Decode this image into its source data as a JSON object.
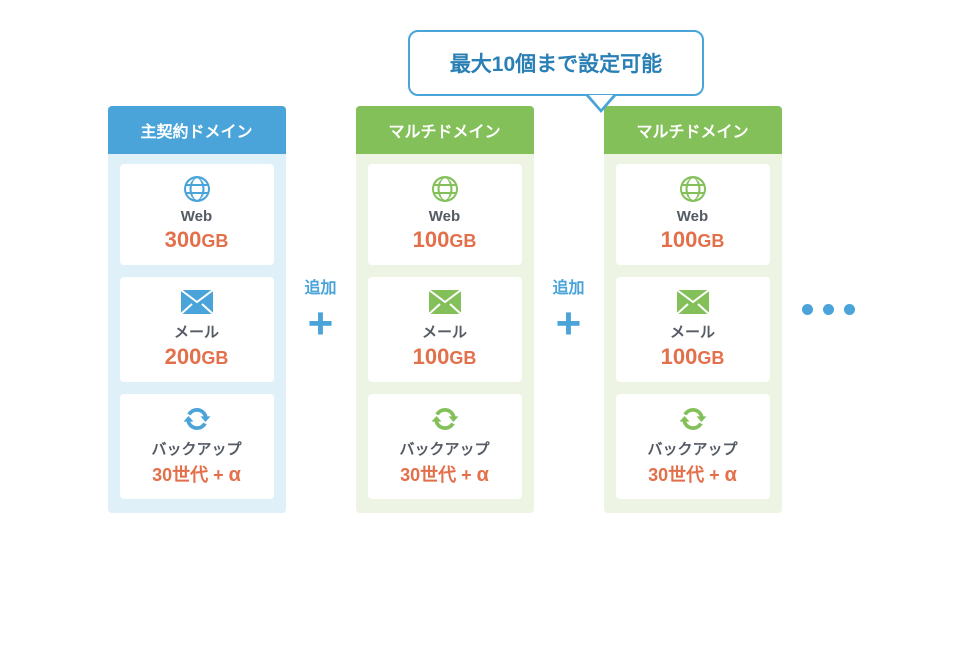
{
  "colors": {
    "callout_border": "#4aa4d9",
    "callout_text": "#2a7fb5",
    "primary_header": "#4aa4d9",
    "primary_bg": "#e0f0f9",
    "multi_header": "#84c05a",
    "multi_bg": "#edf4e4",
    "value_color": "#e3704a",
    "joiner_color": "#4aa4d9"
  },
  "callout": "最大10個まで設定可能",
  "joiner_word": "追加",
  "columns": [
    {
      "kind": "primary",
      "title": "主契約ドメイン",
      "cards": [
        {
          "icon": "globe",
          "label": "Web",
          "value_num": "300",
          "value_unit": "GB"
        },
        {
          "icon": "mail",
          "label": "メール",
          "value_num": "200",
          "value_unit": "GB"
        },
        {
          "icon": "refresh",
          "label": "バックアップ",
          "value_text": "30世代 + α"
        }
      ]
    },
    {
      "kind": "multi",
      "title": "マルチドメイン",
      "cards": [
        {
          "icon": "globe",
          "label": "Web",
          "value_num": "100",
          "value_unit": "GB"
        },
        {
          "icon": "mail",
          "label": "メール",
          "value_num": "100",
          "value_unit": "GB"
        },
        {
          "icon": "refresh",
          "label": "バックアップ",
          "value_text": "30世代 + α"
        }
      ]
    },
    {
      "kind": "multi",
      "title": "マルチドメイン",
      "cards": [
        {
          "icon": "globe",
          "label": "Web",
          "value_num": "100",
          "value_unit": "GB"
        },
        {
          "icon": "mail",
          "label": "メール",
          "value_num": "100",
          "value_unit": "GB"
        },
        {
          "icon": "refresh",
          "label": "バックアップ",
          "value_text": "30世代 + α"
        }
      ]
    }
  ]
}
